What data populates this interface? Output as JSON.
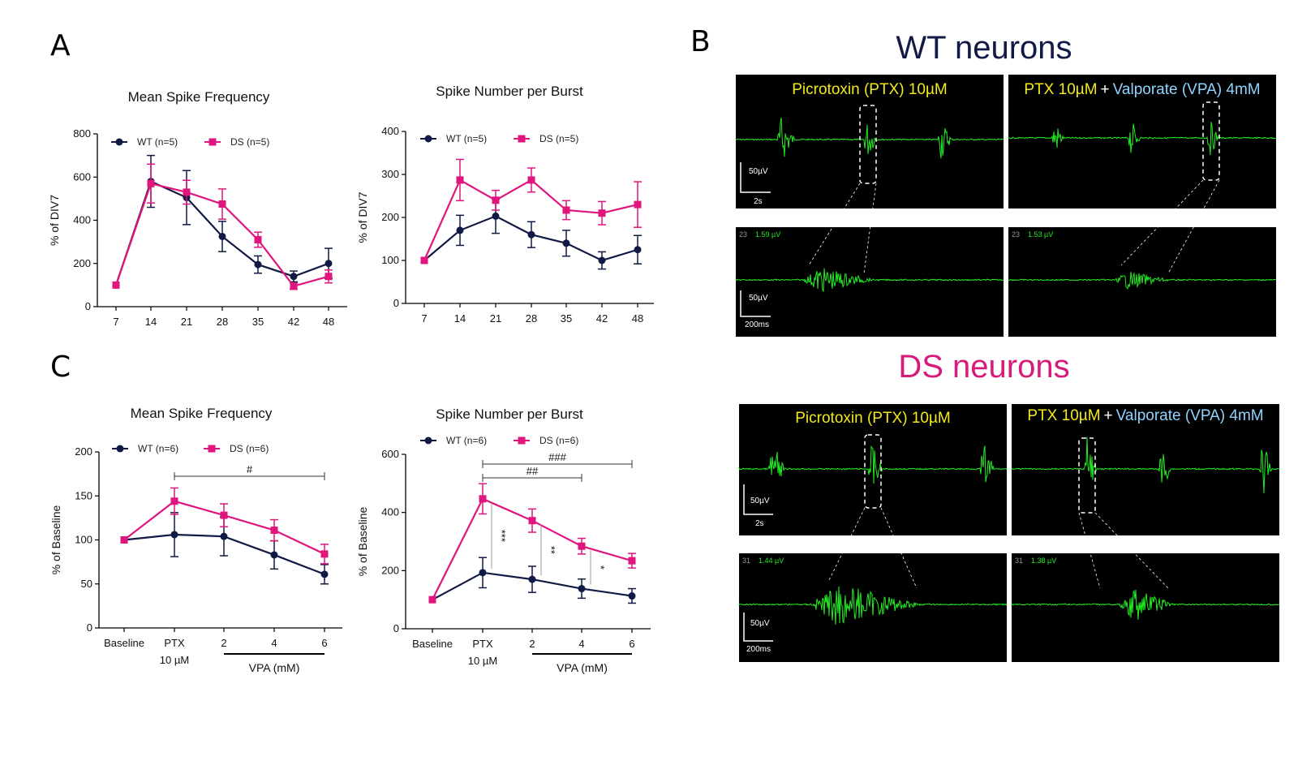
{
  "colors": {
    "wt": "#111a44",
    "ds": "#e0157e",
    "trace": "#22ee22",
    "yellow": "#f2ea1a",
    "lightblue": "#8fd4ff",
    "magenta_heading": "#d81b7a"
  },
  "panels": {
    "A": "A",
    "B": "B",
    "C": "C"
  },
  "chart_data": [
    {
      "id": "A1",
      "type": "line",
      "title": "Mean Spike Frequency",
      "ylabel": "% of DIV7",
      "xlabel": "",
      "categories": [
        "7",
        "14",
        "21",
        "28",
        "35",
        "42",
        "48"
      ],
      "ylim": [
        0,
        800
      ],
      "yticks": [
        "0",
        "200",
        "400",
        "600",
        "800"
      ],
      "legend_placement": "top-left",
      "series": [
        {
          "name": "WT (n=5)",
          "values": [
            100,
            580,
            505,
            325,
            195,
            140,
            200
          ],
          "errors": [
            0,
            120,
            125,
            70,
            40,
            25,
            70
          ]
        },
        {
          "name": "DS (n=5)",
          "values": [
            100,
            570,
            530,
            475,
            310,
            95,
            140
          ],
          "errors": [
            0,
            90,
            55,
            70,
            35,
            15,
            30
          ]
        }
      ]
    },
    {
      "id": "A2",
      "type": "line",
      "title": "Spike Number per Burst",
      "ylabel": "% of DIV7",
      "xlabel": "",
      "categories": [
        "7",
        "14",
        "21",
        "28",
        "35",
        "42",
        "48"
      ],
      "ylim": [
        0,
        400
      ],
      "yticks": [
        "0",
        "100",
        "200",
        "300",
        "400"
      ],
      "legend_placement": "top-left",
      "series": [
        {
          "name": "WT (n=5)",
          "values": [
            100,
            170,
            203,
            160,
            140,
            100,
            125
          ],
          "errors": [
            0,
            35,
            40,
            30,
            30,
            20,
            33
          ]
        },
        {
          "name": "DS (n=5)",
          "values": [
            100,
            287,
            240,
            287,
            217,
            210,
            230
          ],
          "errors": [
            0,
            48,
            23,
            28,
            22,
            27,
            53
          ]
        }
      ]
    },
    {
      "id": "C1",
      "type": "line",
      "title": "Mean Spike Frequency",
      "ylabel": "% of Baseline",
      "xlabel": "VPA (mM)",
      "categories": [
        "Baseline",
        "PTX",
        "2",
        "4",
        "6"
      ],
      "ptx_sub": "10 µM",
      "ylim": [
        0,
        200
      ],
      "yticks": [
        "0",
        "50",
        "100",
        "150",
        "200"
      ],
      "legend_placement": "top-left",
      "series": [
        {
          "name": "WT (n=6)",
          "values": [
            100,
            106,
            104,
            83,
            61
          ],
          "errors": [
            0,
            25,
            22,
            16,
            11
          ]
        },
        {
          "name": "DS (n=6)",
          "values": [
            100,
            144,
            128,
            111,
            84
          ],
          "errors": [
            0,
            15,
            13,
            12,
            11
          ]
        }
      ],
      "annotations": [
        {
          "label": "#",
          "from": 1,
          "to": 4
        }
      ]
    },
    {
      "id": "C2",
      "type": "line",
      "title": "Spike Number per Burst",
      "ylabel": "% of Baseline",
      "xlabel": "VPA (mM)",
      "categories": [
        "Baseline",
        "PTX",
        "2",
        "4",
        "6"
      ],
      "ptx_sub": "10 µM",
      "ylim": [
        0,
        600
      ],
      "yticks": [
        "0",
        "200",
        "400",
        "600"
      ],
      "legend_placement": "top-left",
      "series": [
        {
          "name": "WT (n=6)",
          "values": [
            100,
            193,
            170,
            138,
            113
          ],
          "errors": [
            0,
            52,
            45,
            33,
            25
          ]
        },
        {
          "name": "DS (n=6)",
          "values": [
            100,
            447,
            372,
            284,
            234
          ],
          "errors": [
            0,
            52,
            40,
            27,
            25
          ]
        }
      ],
      "annotations": [
        {
          "label": "###",
          "from": 1,
          "to": 4
        },
        {
          "label": "##",
          "from": 1,
          "to": 3
        },
        {
          "label": "***",
          "at": 1
        },
        {
          "label": "**",
          "at": 2
        },
        {
          "label": "*",
          "at": 3
        }
      ]
    }
  ],
  "traces": {
    "wt_heading": "WT neurons",
    "ds_heading": "DS neurons",
    "ptx_label": "Picrotoxin (PTX) 10µM",
    "combo_ptx": "PTX 10µM",
    "combo_plus": "+",
    "combo_vpa": "Valporate (VPA) 4mM",
    "scale_50uv": "50µV",
    "scale_2s": "2s",
    "scale_200ms": "200ms",
    "meters": {
      "wt_left": {
        "ch": "23",
        "val": "1.59 µV"
      },
      "wt_right": {
        "ch": "23",
        "val": "1.53 µV"
      },
      "ds_left": {
        "ch": "31",
        "val": "1.44 µV"
      },
      "ds_right": {
        "ch": "31",
        "val": "1.38 µV"
      }
    }
  }
}
